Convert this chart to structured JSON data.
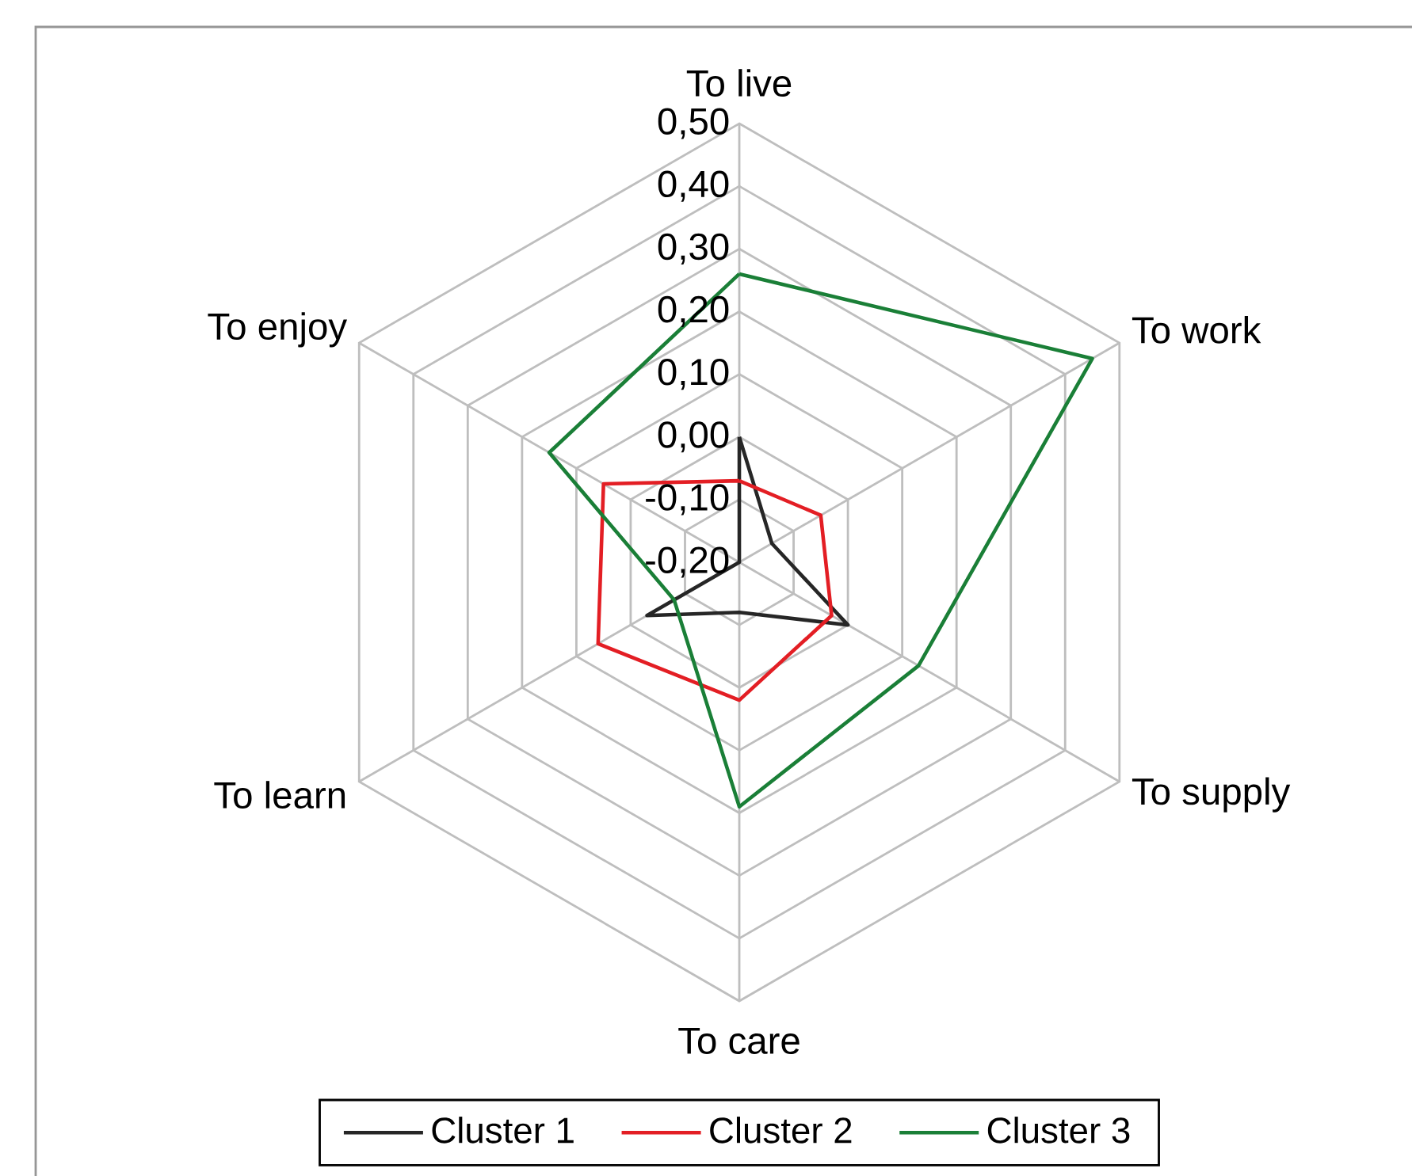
{
  "chart_data": {
    "type": "radar",
    "categories": [
      "To live",
      "To work",
      "To supply",
      "To care",
      "To learn",
      "To enjoy"
    ],
    "ylim": [
      -0.2,
      0.5
    ],
    "yticks": [
      {
        "value": -0.2,
        "label": "-0,20"
      },
      {
        "value": -0.1,
        "label": "-0,10"
      },
      {
        "value": 0.0,
        "label": "0,00"
      },
      {
        "value": 0.1,
        "label": "0,10"
      },
      {
        "value": 0.2,
        "label": "0,20"
      },
      {
        "value": 0.3,
        "label": "0,30"
      },
      {
        "value": 0.4,
        "label": "0,40"
      },
      {
        "value": 0.5,
        "label": "0,50"
      }
    ],
    "grid": true,
    "legend": "bottom",
    "series": [
      {
        "name": "Cluster 1",
        "color": "#262626",
        "values": [
          0.0,
          -0.14,
          0.0,
          -0.12,
          -0.03,
          -0.2
        ]
      },
      {
        "name": "Cluster 2",
        "color": "#e31e24",
        "values": [
          -0.07,
          -0.05,
          -0.03,
          0.02,
          0.06,
          0.05
        ]
      },
      {
        "name": "Cluster 3",
        "color": "#1a7f37",
        "values": [
          0.26,
          0.45,
          0.13,
          0.19,
          -0.08,
          0.15
        ]
      }
    ]
  }
}
